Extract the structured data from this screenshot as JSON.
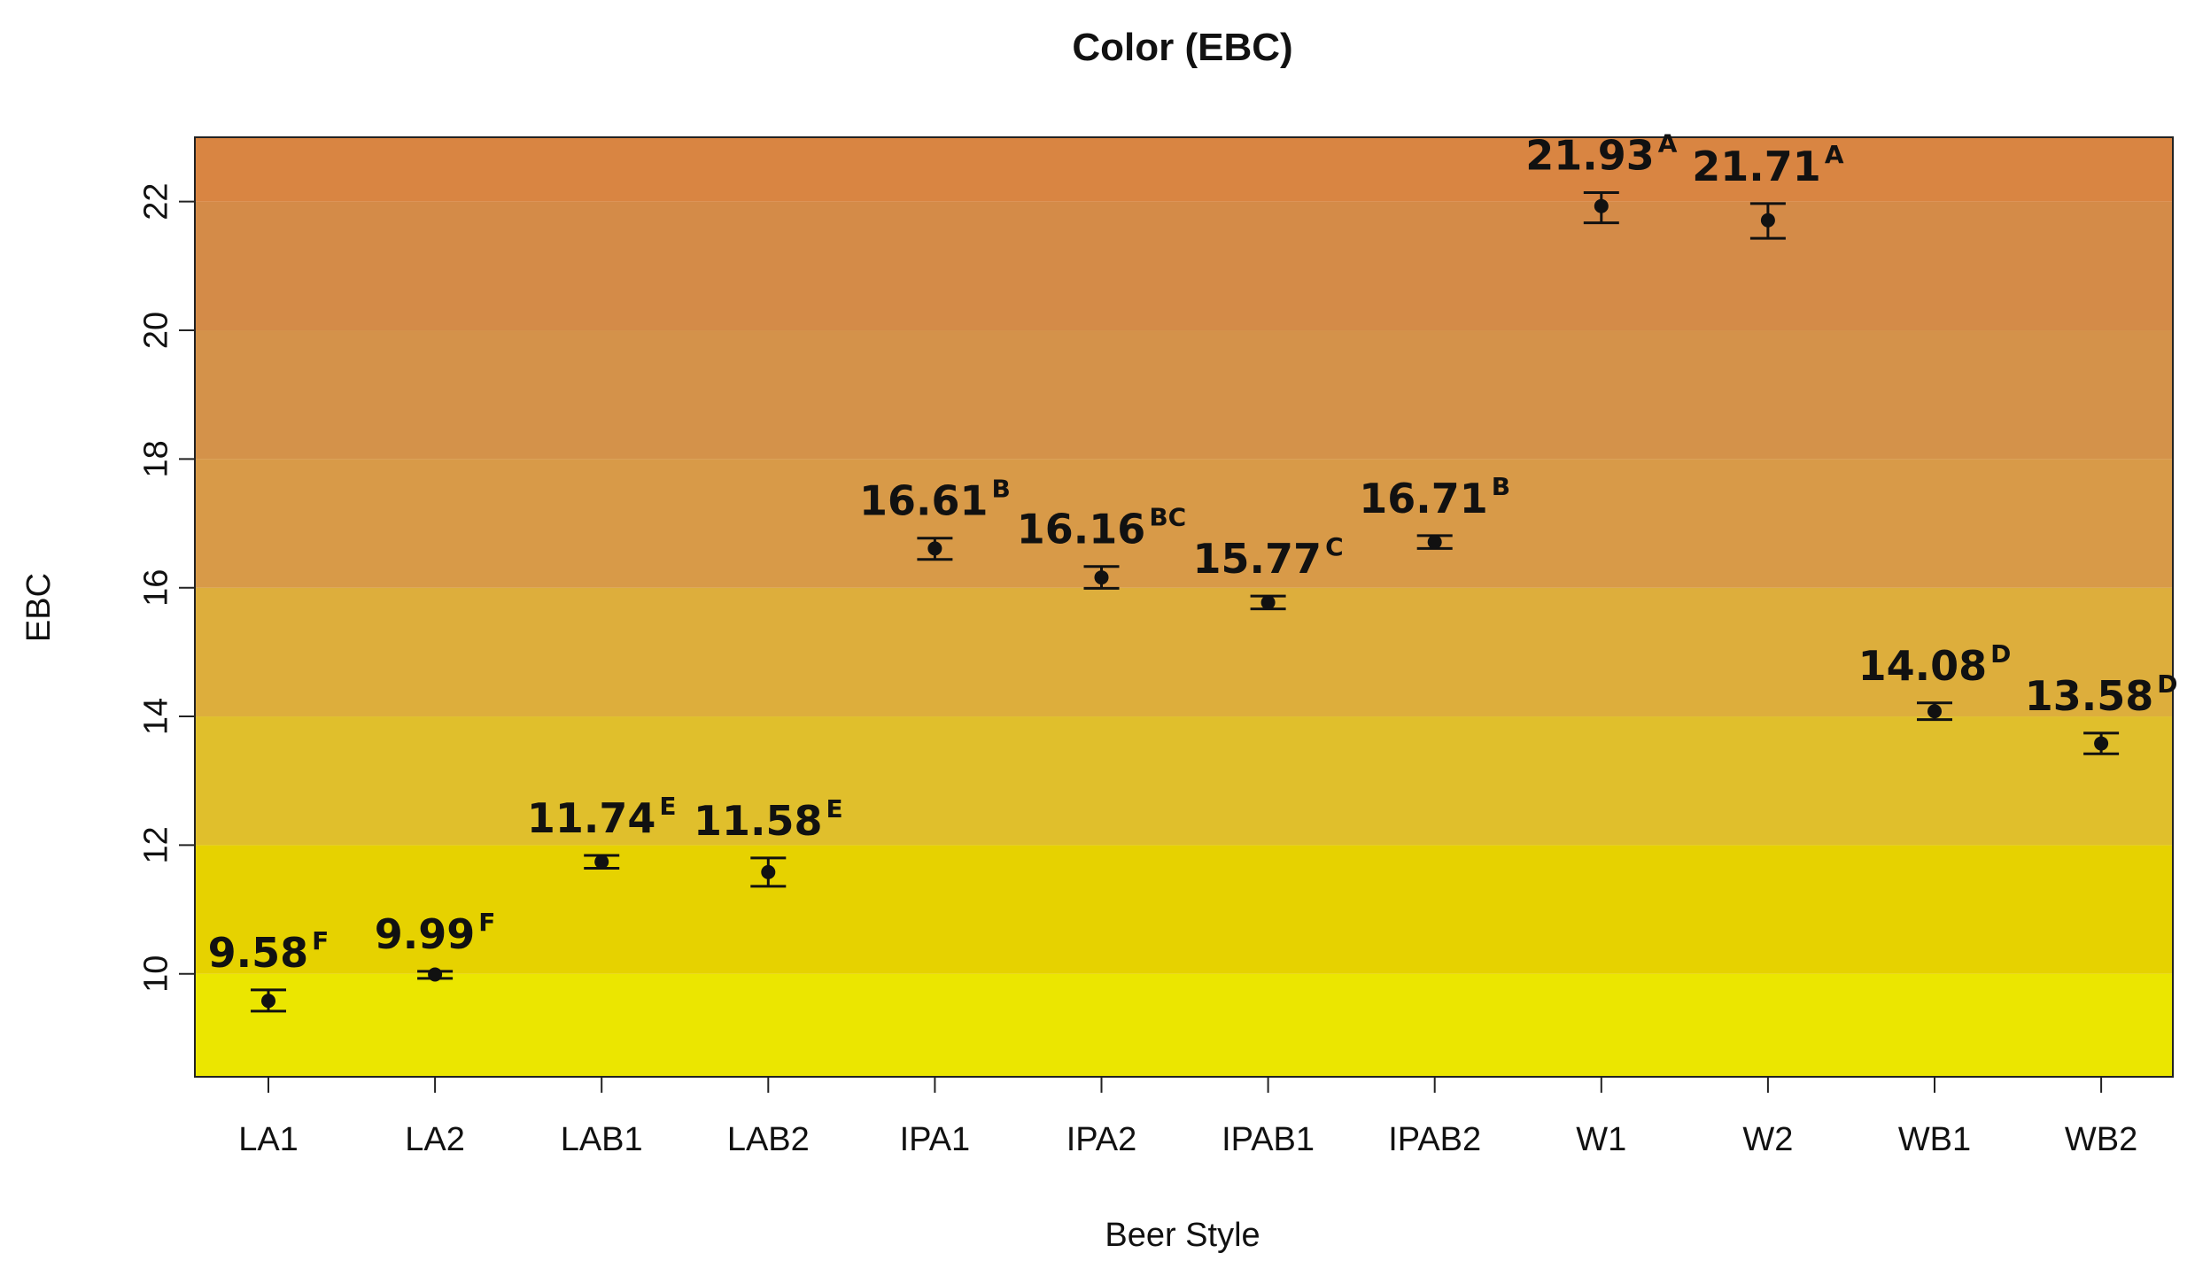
{
  "chart_data": {
    "type": "scatter",
    "title": "Color (EBC)",
    "xlabel": "Beer Style",
    "ylabel": "EBC",
    "ylim": [
      8.4,
      23.0
    ],
    "yticks": [
      10,
      12,
      14,
      16,
      18,
      20,
      22
    ],
    "grid": false,
    "categories": [
      "LA1",
      "LA2",
      "LAB1",
      "LAB2",
      "IPA1",
      "IPA2",
      "IPAB1",
      "IPAB2",
      "W1",
      "W2",
      "WB1",
      "WB2"
    ],
    "values": [
      9.58,
      9.99,
      11.74,
      11.58,
      16.61,
      16.16,
      15.77,
      16.71,
      21.93,
      21.71,
      14.08,
      13.58
    ],
    "error_low": [
      9.42,
      9.93,
      11.64,
      11.36,
      16.44,
      15.99,
      15.67,
      16.61,
      21.67,
      21.43,
      13.95,
      13.42
    ],
    "error_high": [
      9.75,
      10.04,
      11.84,
      11.8,
      16.77,
      16.33,
      15.87,
      16.81,
      22.14,
      21.97,
      14.21,
      13.74
    ],
    "labels": [
      "9.58",
      "9.99",
      "11.74",
      "11.58",
      "16.61",
      "16.16",
      "15.77",
      "16.71",
      "21.93",
      "21.71",
      "14.08",
      "13.58"
    ],
    "letters": [
      "F",
      "F",
      "E",
      "E",
      "B",
      "BC",
      "C",
      "B",
      "A",
      "A",
      "D",
      "D"
    ],
    "background_bands": [
      {
        "from": 8.4,
        "to": 10,
        "color": "#ebe600"
      },
      {
        "from": 10,
        "to": 12,
        "color": "#e6d200"
      },
      {
        "from": 12,
        "to": 14,
        "color": "#e0bf2c"
      },
      {
        "from": 14,
        "to": 16,
        "color": "#ddae3c"
      },
      {
        "from": 16,
        "to": 18,
        "color": "#d89a48"
      },
      {
        "from": 18,
        "to": 20,
        "color": "#d4924a"
      },
      {
        "from": 20,
        "to": 22,
        "color": "#d48b48"
      },
      {
        "from": 22,
        "to": 23.0,
        "color": "#d98542"
      }
    ],
    "marker_color": "#111111"
  }
}
